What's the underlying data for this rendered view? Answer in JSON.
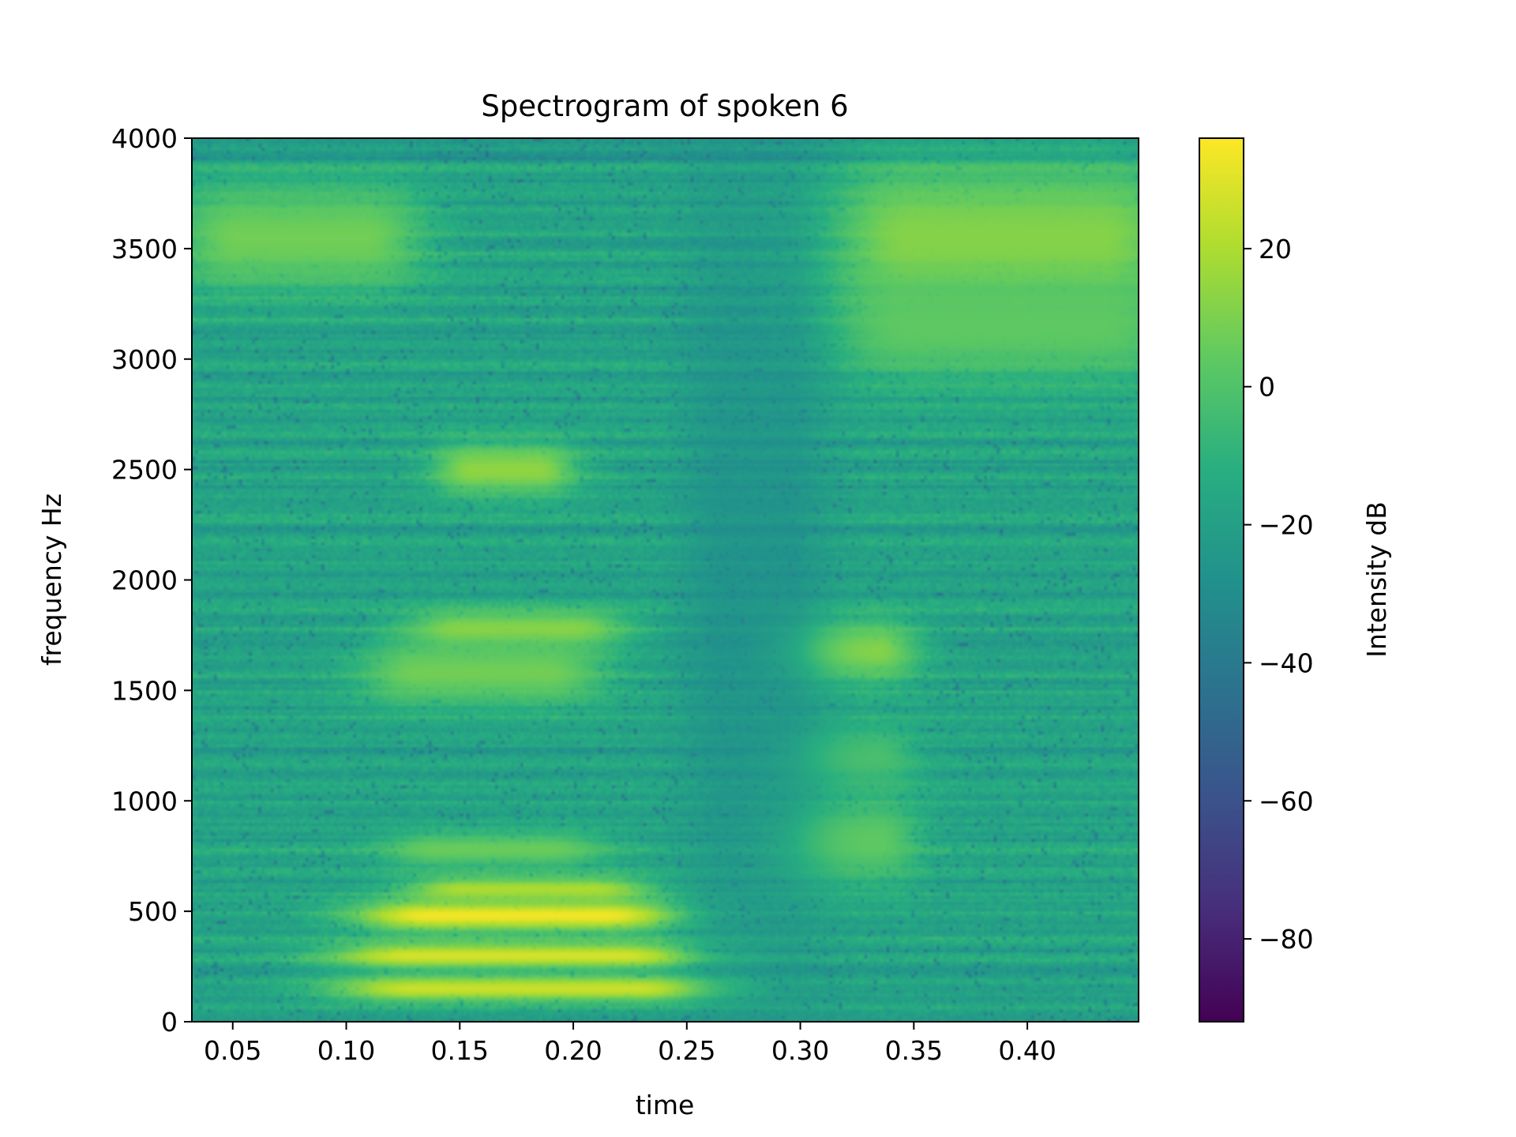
{
  "chart_data": {
    "type": "heatmap",
    "title": "Spectrogram of spoken 6",
    "xlabel": "time",
    "ylabel": "frequency Hz",
    "xlim": [
      0.032,
      0.449
    ],
    "ylim": [
      0,
      4000
    ],
    "x_ticks": [
      0.05,
      0.1,
      0.15,
      0.2,
      0.25,
      0.3,
      0.35,
      0.4
    ],
    "x_tick_labels": [
      "0.05",
      "0.10",
      "0.15",
      "0.20",
      "0.25",
      "0.30",
      "0.35",
      "0.40"
    ],
    "y_ticks": [
      0,
      500,
      1000,
      1500,
      2000,
      2500,
      3000,
      3500,
      4000
    ],
    "y_tick_labels": [
      "0",
      "500",
      "1000",
      "1500",
      "2000",
      "2500",
      "3000",
      "3500",
      "4000"
    ],
    "grid": false,
    "colormap": "viridis",
    "colorbar": {
      "label": "Intensity dB",
      "range": [
        -92,
        36
      ],
      "ticks": [
        20,
        0,
        -20,
        -40,
        -60,
        -80
      ],
      "tick_labels": [
        "20",
        "0",
        "−20",
        "−40",
        "−60",
        "−80"
      ]
    },
    "background_level_db": -18,
    "regions": [
      {
        "t_start": 0.11,
        "t_end": 0.25,
        "f_center": 150,
        "f_width": 60,
        "level_db": 26
      },
      {
        "t_start": 0.11,
        "t_end": 0.24,
        "f_center": 300,
        "f_width": 60,
        "level_db": 28
      },
      {
        "t_start": 0.12,
        "t_end": 0.23,
        "f_center": 480,
        "f_width": 70,
        "level_db": 34
      },
      {
        "t_start": 0.14,
        "t_end": 0.22,
        "f_center": 600,
        "f_width": 60,
        "level_db": 20
      },
      {
        "t_start": 0.13,
        "t_end": 0.2,
        "f_center": 780,
        "f_width": 80,
        "level_db": 6
      },
      {
        "t_start": 0.12,
        "t_end": 0.2,
        "f_center": 1580,
        "f_width": 150,
        "level_db": 8
      },
      {
        "t_start": 0.14,
        "t_end": 0.21,
        "f_center": 1780,
        "f_width": 90,
        "level_db": 12
      },
      {
        "t_start": 0.15,
        "t_end": 0.19,
        "f_center": 2500,
        "f_width": 120,
        "level_db": 14
      },
      {
        "t_start": 0.04,
        "t_end": 0.12,
        "f_center": 3550,
        "f_width": 250,
        "level_db": 8
      },
      {
        "t_start": 0.3,
        "t_end": 0.34,
        "f_center": 1680,
        "f_width": 150,
        "level_db": 12
      },
      {
        "t_start": 0.3,
        "t_end": 0.34,
        "f_center": 820,
        "f_width": 200,
        "level_db": 4
      },
      {
        "t_start": 0.3,
        "t_end": 0.34,
        "f_center": 1200,
        "f_width": 150,
        "level_db": -2
      },
      {
        "t_start": 0.33,
        "t_end": 0.45,
        "f_center": 3550,
        "f_width": 350,
        "level_db": 12
      },
      {
        "t_start": 0.33,
        "t_end": 0.45,
        "f_center": 3150,
        "f_width": 250,
        "level_db": 4
      },
      {
        "t_start": 0.26,
        "t_end": 0.3,
        "f_center": 2000,
        "f_width": 2000,
        "level_db": -32
      }
    ]
  }
}
